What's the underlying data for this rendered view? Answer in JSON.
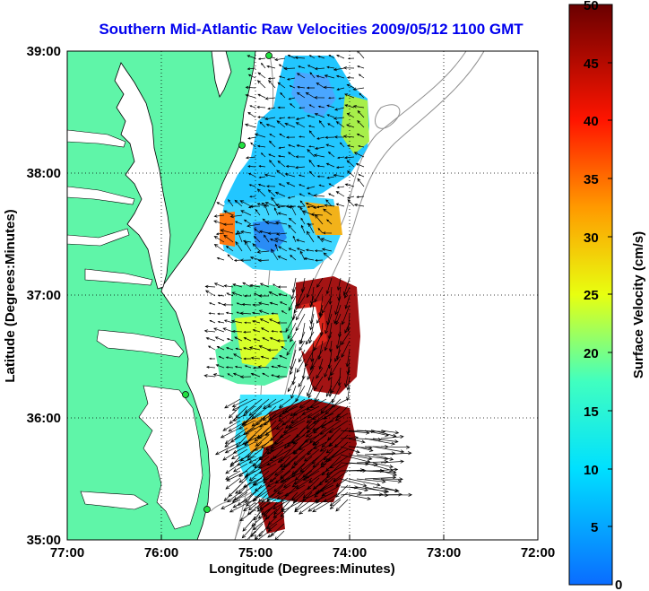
{
  "title": "Southern Mid-Atlantic Raw Velocities 2009/05/12 1100 GMT",
  "xlabel": "Longitude (Degrees:Minutes)",
  "ylabel": "Latitude (Degrees:Minutes)",
  "x_ticks": [
    "77:00",
    "76:00",
    "75:00",
    "74:00",
    "73:00",
    "72:00"
  ],
  "y_ticks": [
    "39:00",
    "38:00",
    "37:00",
    "36:00",
    "35:00"
  ],
  "colorbar": {
    "label": "Surface Velocity (cm/s)",
    "ticks": [
      "50",
      "45",
      "40",
      "35",
      "30",
      "25",
      "20",
      "15",
      "10",
      "5",
      "0"
    ],
    "min": 0,
    "max": 50
  },
  "colors": {
    "land": "#5ff5a8",
    "title": "#0000ee",
    "bathymetry": "#909090"
  }
}
